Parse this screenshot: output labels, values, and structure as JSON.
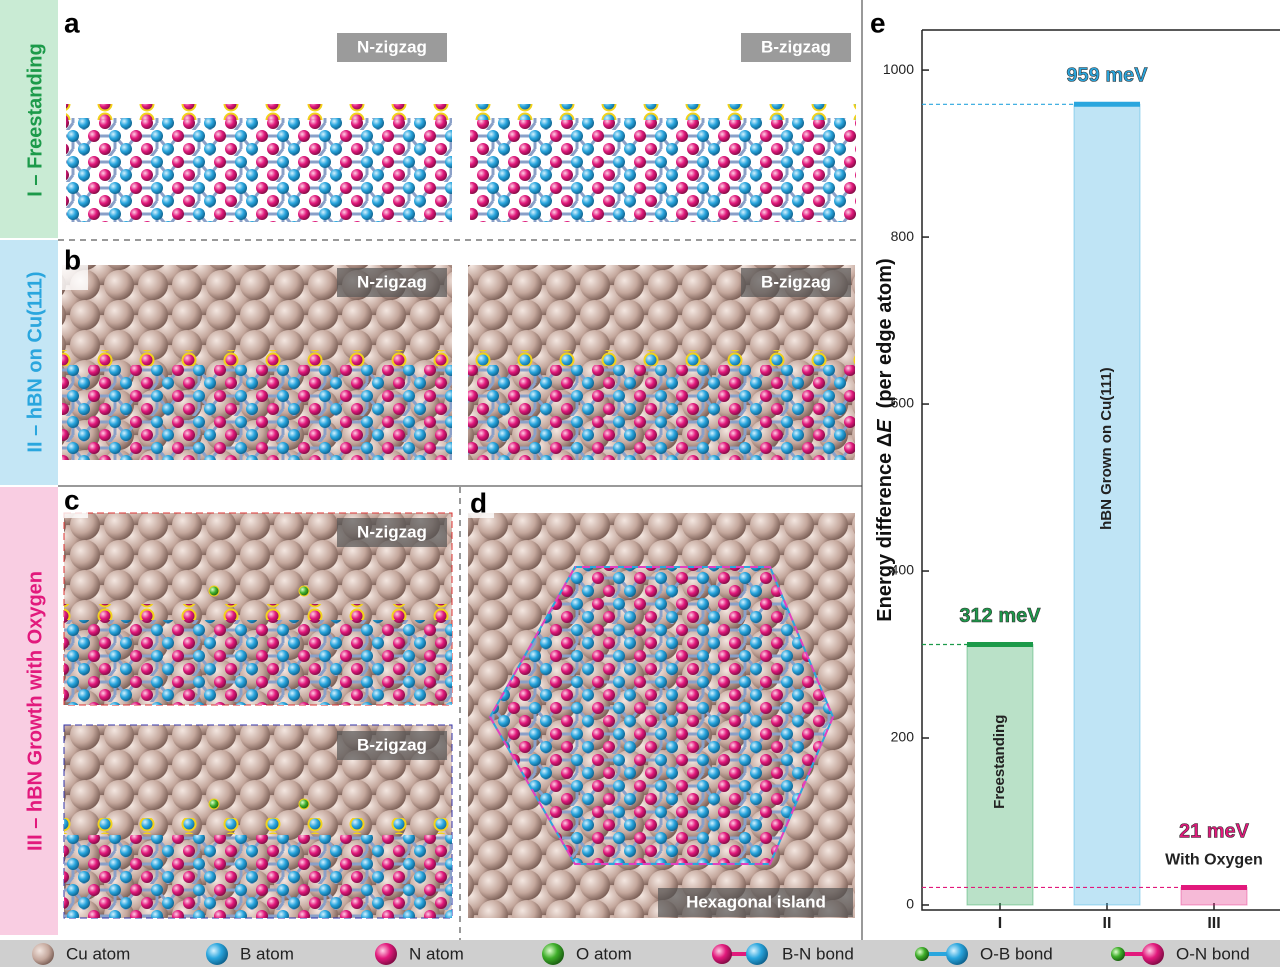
{
  "panel_letters": [
    "a",
    "b",
    "c",
    "d",
    "e"
  ],
  "row_labels": [
    "I – Freestanding",
    "II – hBN on Cu(111)",
    "III – hBN Growth with Oxygen"
  ],
  "structure_labels": [
    "N-zigzag",
    "B-zigzag",
    "N-zigzag",
    "B-zigzag",
    "N-zigzag",
    "B-zigzag",
    "Hexagonal island"
  ],
  "legend": [
    "Cu atom",
    "B atom",
    "N atom",
    "O atom",
    "B-N bond",
    "O-B bond",
    "O-N bond"
  ],
  "chart_data": {
    "type": "bar",
    "ylabel_parts": [
      "Energy difference Δ",
      "E",
      "  (per edge atom)"
    ],
    "categories": [
      "I",
      "II",
      "III"
    ],
    "values": [
      312,
      959,
      21
    ],
    "value_labels": [
      "312 meV",
      "959 meV",
      "21 meV"
    ],
    "bar_labels": [
      "Freestanding",
      "hBN Grown on Cu(111)",
      "With Oxygen"
    ],
    "colors": [
      "#1c9a4a",
      "#2aa6de",
      "#e2197c"
    ],
    "ylim": [
      -6,
      1048
    ],
    "yticks": [
      0,
      200,
      400,
      600,
      800,
      1000
    ]
  }
}
